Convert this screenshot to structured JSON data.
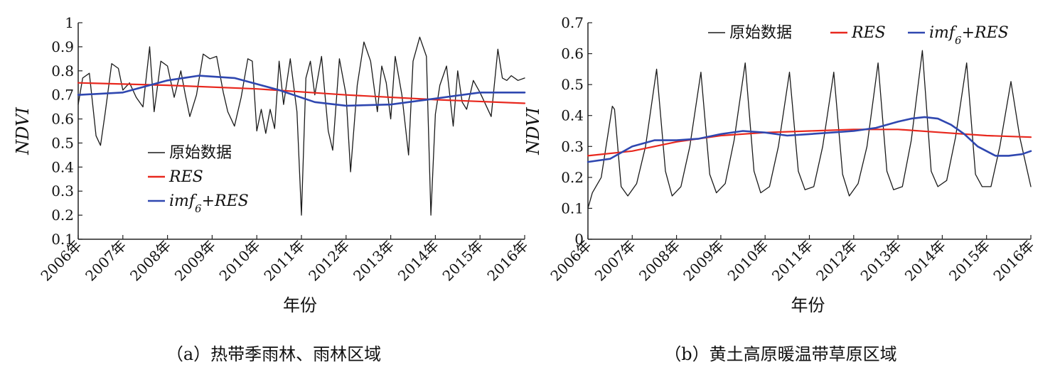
{
  "chart_data": [
    {
      "type": "line",
      "xlabel": "年份",
      "ylabel": "NDVI",
      "ylim": [
        0.1,
        1.0
      ],
      "yticks": [
        "0.1",
        "0.2",
        "0.3",
        "0.4",
        "0.5",
        "0.6",
        "0.7",
        "0.8",
        "0.9",
        "1"
      ],
      "xticks": [
        "2006年",
        "2007年",
        "2008年",
        "2009年",
        "2010年",
        "2011年",
        "2012年",
        "2013年",
        "2014年",
        "2015年",
        "2016年"
      ],
      "caption": "（a）热带季雨林、雨林区域",
      "legend": {
        "placement": "center-left",
        "items": [
          "原始数据",
          "RES",
          "imf6+RES"
        ]
      },
      "colors": {
        "raw": "#1a1a1a",
        "res": "#e8281e",
        "imf": "#2f47b0"
      },
      "series": [
        {
          "name": "原始数据",
          "x": [
            2006.0,
            2006.1,
            2006.25,
            2006.4,
            2006.5,
            2006.6,
            2006.75,
            2006.9,
            2007.0,
            2007.15,
            2007.3,
            2007.45,
            2007.6,
            2007.7,
            2007.85,
            2008.0,
            2008.15,
            2008.3,
            2008.4,
            2008.5,
            2008.65,
            2008.8,
            2008.95,
            2009.1,
            2009.25,
            2009.35,
            2009.5,
            2009.65,
            2009.8,
            2009.9,
            2010.0,
            2010.1,
            2010.2,
            2010.3,
            2010.4,
            2010.5,
            2010.6,
            2010.75,
            2010.9,
            2011.0,
            2011.1,
            2011.2,
            2011.3,
            2011.45,
            2011.6,
            2011.7,
            2011.85,
            2012.0,
            2012.1,
            2012.25,
            2012.4,
            2012.55,
            2012.7,
            2012.8,
            2012.9,
            2013.0,
            2013.1,
            2013.25,
            2013.4,
            2013.5,
            2013.65,
            2013.8,
            2013.9,
            2014.0,
            2014.1,
            2014.25,
            2014.4,
            2014.5,
            2014.6,
            2014.7,
            2014.85,
            2015.0,
            2015.1,
            2015.25,
            2015.4,
            2015.5,
            2015.6,
            2015.7,
            2015.85,
            2016.0
          ],
          "values": [
            0.66,
            0.77,
            0.79,
            0.53,
            0.49,
            0.62,
            0.83,
            0.81,
            0.72,
            0.75,
            0.69,
            0.65,
            0.9,
            0.63,
            0.84,
            0.82,
            0.69,
            0.8,
            0.7,
            0.61,
            0.7,
            0.87,
            0.85,
            0.86,
            0.71,
            0.63,
            0.57,
            0.69,
            0.85,
            0.84,
            0.55,
            0.64,
            0.54,
            0.64,
            0.56,
            0.84,
            0.66,
            0.85,
            0.63,
            0.2,
            0.77,
            0.84,
            0.7,
            0.86,
            0.55,
            0.47,
            0.85,
            0.7,
            0.38,
            0.74,
            0.92,
            0.84,
            0.63,
            0.82,
            0.75,
            0.6,
            0.86,
            0.7,
            0.45,
            0.84,
            0.94,
            0.86,
            0.2,
            0.62,
            0.74,
            0.82,
            0.57,
            0.8,
            0.67,
            0.64,
            0.76,
            0.71,
            0.67,
            0.61,
            0.89,
            0.77,
            0.76,
            0.78,
            0.76,
            0.77
          ]
        },
        {
          "name": "RES",
          "x": [
            2006.0,
            2008.0,
            2010.0,
            2012.0,
            2014.0,
            2016.0
          ],
          "values": [
            0.75,
            0.74,
            0.725,
            0.7,
            0.68,
            0.665
          ]
        },
        {
          "name": "imf6+RES",
          "x": [
            2006.0,
            2007.0,
            2008.0,
            2008.7,
            2009.5,
            2010.5,
            2011.3,
            2012.0,
            2013.0,
            2014.0,
            2015.0,
            2016.0
          ],
          "values": [
            0.7,
            0.71,
            0.76,
            0.78,
            0.77,
            0.72,
            0.67,
            0.655,
            0.66,
            0.685,
            0.71,
            0.71
          ]
        }
      ]
    },
    {
      "type": "line",
      "xlabel": "年份",
      "ylabel": "NDVI",
      "ylim": [
        0,
        0.7
      ],
      "yticks": [
        "0",
        "0.1",
        "0.2",
        "0.3",
        "0.4",
        "0.5",
        "0.6",
        "0.7"
      ],
      "xticks": [
        "2006年",
        "2007年",
        "2008年",
        "2009年",
        "2010年",
        "2011年",
        "2012年",
        "2013年",
        "2014年",
        "2015年",
        "2016年"
      ],
      "caption": "（b）黄土高原暖温带草原区域",
      "legend": {
        "placement": "top",
        "items": [
          "原始数据",
          "RES",
          "imf6+RES"
        ]
      },
      "colors": {
        "raw": "#1a1a1a",
        "res": "#e8281e",
        "imf": "#2f47b0"
      },
      "series": [
        {
          "name": "原始数据",
          "x": [
            2006.0,
            2006.1,
            2006.3,
            2006.55,
            2006.6,
            2006.75,
            2006.9,
            2007.1,
            2007.3,
            2007.55,
            2007.75,
            2007.9,
            2008.1,
            2008.3,
            2008.55,
            2008.75,
            2008.9,
            2009.1,
            2009.3,
            2009.55,
            2009.75,
            2009.9,
            2010.1,
            2010.3,
            2010.55,
            2010.75,
            2010.9,
            2011.1,
            2011.3,
            2011.55,
            2011.75,
            2011.9,
            2012.1,
            2012.3,
            2012.55,
            2012.75,
            2012.9,
            2013.1,
            2013.3,
            2013.55,
            2013.75,
            2013.9,
            2014.1,
            2014.3,
            2014.55,
            2014.75,
            2014.9,
            2015.1,
            2015.3,
            2015.55,
            2015.75,
            2016.0
          ],
          "values": [
            0.1,
            0.15,
            0.2,
            0.43,
            0.42,
            0.17,
            0.14,
            0.18,
            0.3,
            0.55,
            0.22,
            0.14,
            0.17,
            0.3,
            0.54,
            0.21,
            0.15,
            0.18,
            0.32,
            0.57,
            0.22,
            0.15,
            0.17,
            0.3,
            0.54,
            0.22,
            0.16,
            0.17,
            0.3,
            0.54,
            0.21,
            0.14,
            0.18,
            0.3,
            0.57,
            0.22,
            0.16,
            0.17,
            0.32,
            0.61,
            0.22,
            0.17,
            0.19,
            0.33,
            0.57,
            0.21,
            0.17,
            0.17,
            0.3,
            0.51,
            0.33,
            0.17
          ]
        },
        {
          "name": "RES",
          "x": [
            2006.0,
            2007.0,
            2008.0,
            2009.0,
            2010.0,
            2011.0,
            2012.0,
            2013.0,
            2014.0,
            2015.0,
            2016.0
          ],
          "values": [
            0.27,
            0.285,
            0.315,
            0.335,
            0.345,
            0.35,
            0.355,
            0.355,
            0.345,
            0.335,
            0.33
          ]
        },
        {
          "name": "imf6+RES",
          "x": [
            2006.0,
            2006.5,
            2007.0,
            2007.5,
            2008.0,
            2008.5,
            2009.0,
            2009.5,
            2010.0,
            2010.5,
            2011.0,
            2011.5,
            2012.0,
            2012.5,
            2013.0,
            2013.3,
            2013.6,
            2013.9,
            2014.2,
            2014.5,
            2014.8,
            2015.2,
            2015.5,
            2015.8,
            2016.0
          ],
          "values": [
            0.25,
            0.26,
            0.3,
            0.32,
            0.32,
            0.325,
            0.34,
            0.35,
            0.345,
            0.335,
            0.34,
            0.345,
            0.35,
            0.36,
            0.38,
            0.39,
            0.395,
            0.39,
            0.37,
            0.34,
            0.3,
            0.27,
            0.27,
            0.275,
            0.285
          ]
        }
      ]
    }
  ]
}
